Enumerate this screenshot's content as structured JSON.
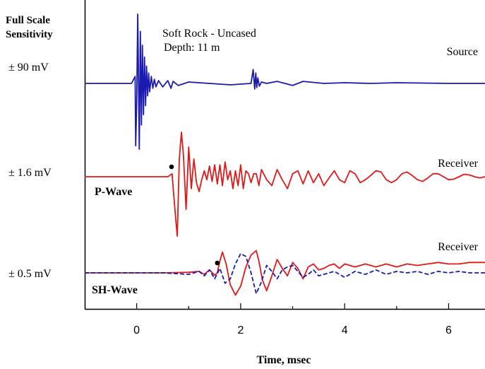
{
  "chart_data": {
    "type": "line",
    "title": "",
    "xlabel": "Time, msec",
    "ylabel": "Full Scale Sensitivity",
    "ylabel_line1": "Full Scale",
    "ylabel_line2": "Sensitivity",
    "xlim": [
      -1.0,
      6.7
    ],
    "xticks": [
      0,
      2,
      4,
      6
    ],
    "xtick_labels": [
      "0",
      "2",
      "4",
      "6"
    ],
    "grid": false,
    "annotations": {
      "site_line1": "Soft Rock - Uncased",
      "site_line2": "Depth: 11 m"
    },
    "traces": [
      {
        "name": "Source",
        "label": "Source",
        "sensitivity": "± 90 mV",
        "color": "#1a1ab0",
        "series": [
          {
            "name": "Source",
            "style": "solid",
            "x": [
              -1.0,
              -0.1,
              -0.03,
              -0.02,
              0.0,
              0.02,
              0.03,
              0.05,
              0.07,
              0.09,
              0.11,
              0.13,
              0.15,
              0.17,
              0.19,
              0.21,
              0.23,
              0.25,
              0.28,
              0.31,
              0.34,
              0.37,
              0.42,
              0.5,
              0.6,
              0.66,
              0.7,
              0.8,
              1.0,
              1.4,
              1.8,
              2.2,
              2.24,
              2.27,
              2.29,
              2.31,
              2.33,
              2.36,
              2.4,
              2.5,
              2.7,
              3.0,
              3.2,
              3.6,
              4.0,
              4.5,
              5.0,
              6.0,
              6.7
            ],
            "y": [
              0.0,
              0.0,
              0.1,
              -0.9,
              -0.3,
              1.0,
              0.4,
              -0.95,
              0.75,
              -0.6,
              0.55,
              -0.45,
              0.38,
              -0.32,
              0.25,
              -0.18,
              0.15,
              -0.12,
              0.1,
              -0.07,
              0.06,
              -0.05,
              0.04,
              -0.05,
              0.04,
              -0.07,
              0.03,
              -0.03,
              0.02,
              0.0,
              -0.02,
              0.0,
              0.2,
              -0.08,
              0.15,
              -0.06,
              0.08,
              -0.04,
              0.02,
              0.0,
              0.03,
              -0.03,
              0.03,
              0.0,
              0.01,
              0.0,
              0.01,
              0.0,
              0.0
            ]
          }
        ]
      },
      {
        "name": "P-Wave",
        "label": "P-Wave",
        "sensitivity": "± 1.6 mV",
        "receiver_label": "Receiver",
        "color": "#e01818",
        "pick_time": 0.67,
        "series": [
          {
            "name": "Receiver",
            "style": "solid",
            "x": [
              -1.0,
              0.6,
              0.68,
              0.74,
              0.78,
              0.82,
              0.86,
              0.9,
              0.95,
              1.0,
              1.05,
              1.1,
              1.15,
              1.2,
              1.25,
              1.3,
              1.35,
              1.4,
              1.45,
              1.5,
              1.55,
              1.6,
              1.65,
              1.7,
              1.75,
              1.8,
              1.85,
              1.9,
              1.95,
              2.0,
              2.05,
              2.1,
              2.15,
              2.2,
              2.25,
              2.3,
              2.35,
              2.4,
              2.5,
              2.6,
              2.7,
              2.8,
              2.9,
              3.0,
              3.1,
              3.2,
              3.3,
              3.4,
              3.5,
              3.6,
              3.7,
              3.8,
              3.9,
              4.0,
              4.1,
              4.2,
              4.3,
              4.4,
              4.5,
              4.6,
              4.7,
              4.8,
              4.9,
              5.0,
              5.1,
              5.2,
              5.3,
              5.4,
              5.5,
              5.6,
              5.7,
              5.8,
              5.9,
              6.0,
              6.1,
              6.2,
              6.3,
              6.4,
              6.5,
              6.6,
              6.7
            ],
            "y": [
              0.0,
              0.0,
              0.05,
              -0.6,
              -1.0,
              0.3,
              0.75,
              0.35,
              -0.55,
              0.5,
              -0.2,
              0.3,
              -0.1,
              -0.25,
              -0.05,
              0.1,
              -0.05,
              0.18,
              -0.08,
              0.2,
              -0.12,
              0.2,
              -0.15,
              0.25,
              -0.05,
              0.1,
              -0.2,
              0.1,
              -0.15,
              0.2,
              -0.2,
              0.1,
              0.05,
              -0.1,
              0.05,
              0.05,
              -0.15,
              0.12,
              -0.05,
              -0.15,
              0.12,
              -0.05,
              -0.2,
              0.05,
              0.1,
              -0.12,
              0.1,
              -0.1,
              0.05,
              -0.15,
              -0.02,
              0.1,
              -0.05,
              -0.1,
              0.1,
              0.05,
              -0.1,
              -0.05,
              0.02,
              0.1,
              0.08,
              -0.05,
              -0.1,
              -0.05,
              0.05,
              0.08,
              0.02,
              -0.05,
              -0.08,
              -0.02,
              0.05,
              0.05,
              0.0,
              -0.05,
              -0.04,
              0.0,
              0.04,
              0.03,
              0.0,
              -0.02,
              0.0
            ]
          }
        ]
      },
      {
        "name": "SH-Wave",
        "label": "SH-Wave",
        "sensitivity": "± 0.5 mV",
        "receiver_label": "Receiver",
        "pick_time": 1.55,
        "series": [
          {
            "name": "Receiver",
            "style": "solid",
            "color": "#e01818",
            "x": [
              -1.0,
              0.0,
              0.5,
              1.0,
              1.2,
              1.3,
              1.4,
              1.5,
              1.55,
              1.6,
              1.65,
              1.72,
              1.8,
              1.9,
              2.0,
              2.1,
              2.2,
              2.3,
              2.35,
              2.42,
              2.5,
              2.6,
              2.7,
              2.8,
              2.9,
              3.0,
              3.1,
              3.2,
              3.3,
              3.4,
              3.5,
              3.6,
              3.7,
              3.8,
              3.9,
              4.0,
              4.2,
              4.4,
              4.6,
              4.8,
              5.0,
              5.2,
              5.4,
              5.6,
              5.8,
              6.0,
              6.2,
              6.4,
              6.7
            ],
            "y": [
              0.0,
              0.0,
              0.0,
              0.02,
              0.05,
              -0.05,
              0.1,
              -0.08,
              0.0,
              0.4,
              0.7,
              0.3,
              -0.4,
              -0.75,
              -0.45,
              0.2,
              0.6,
              0.75,
              0.4,
              -0.25,
              -0.6,
              -0.1,
              0.45,
              0.15,
              -0.1,
              0.35,
              0.15,
              -0.2,
              0.2,
              0.3,
              0.1,
              0.15,
              0.25,
              0.3,
              0.15,
              0.3,
              0.2,
              0.3,
              0.2,
              0.3,
              0.2,
              0.3,
              0.25,
              0.3,
              0.35,
              0.3,
              0.3,
              0.35,
              0.35
            ]
          },
          {
            "name": "Receiver (dashed)",
            "style": "dashed",
            "color": "#1a1ab0",
            "x": [
              -1.0,
              0.5,
              1.0,
              1.2,
              1.3,
              1.4,
              1.5,
              1.6,
              1.7,
              1.8,
              1.9,
              2.0,
              2.1,
              2.2,
              2.3,
              2.4,
              2.5,
              2.6,
              2.7,
              2.8,
              2.9,
              3.0,
              3.1,
              3.2,
              3.3,
              3.4,
              3.5,
              3.6,
              3.8,
              4.0,
              4.2,
              4.4,
              4.6,
              4.8,
              5.0,
              5.2,
              5.4,
              5.6,
              5.8,
              6.0,
              6.2,
              6.4,
              6.7
            ],
            "y": [
              0.0,
              0.0,
              -0.05,
              0.05,
              -0.1,
              0.1,
              -0.2,
              0.15,
              -0.35,
              -0.2,
              0.3,
              0.65,
              0.55,
              0.0,
              -0.7,
              -0.3,
              0.25,
              0.05,
              -0.2,
              0.1,
              0.2,
              0.25,
              0.05,
              -0.15,
              -0.05,
              0.1,
              -0.1,
              -0.05,
              0.05,
              -0.15,
              0.05,
              -0.05,
              0.1,
              -0.05,
              0.05,
              0.0,
              0.05,
              -0.05,
              0.05,
              0.0,
              0.05,
              0.0,
              0.0
            ]
          }
        ]
      }
    ]
  }
}
